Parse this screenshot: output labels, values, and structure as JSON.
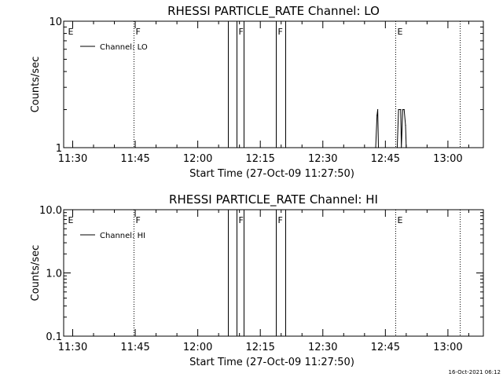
{
  "footer": {
    "timestamp": "16-Oct-2021 06:12"
  },
  "chart_data": [
    {
      "type": "line",
      "title": "RHESSI PARTICLE_RATE Channel: LO",
      "xlabel": "Start Time (27-Oct-09 11:27:50)",
      "ylabel": "Counts/sec",
      "yscale": "log",
      "xlim": [
        "11:27:50",
        "13:08:30"
      ],
      "ylim": [
        1,
        10
      ],
      "x_ticks": [
        "11:30",
        "11:45",
        "12:00",
        "12:15",
        "12:30",
        "12:45",
        "13:00"
      ],
      "y_ticks": [
        {
          "value": 1,
          "label": "1"
        },
        {
          "value": 10,
          "label": "10"
        }
      ],
      "legend": {
        "position": "top-left",
        "entries": [
          "Channel: LO"
        ]
      },
      "markers": [
        {
          "time": "11:28:20",
          "label": "E",
          "style": "none"
        },
        {
          "time": "11:44:40",
          "label": "F",
          "style": "dotted"
        },
        {
          "time": "12:07:15",
          "label": "",
          "style": "solid"
        },
        {
          "time": "12:09:20",
          "label": "F",
          "style": "solid"
        },
        {
          "time": "12:10:55",
          "label": "",
          "style": "solid"
        },
        {
          "time": "12:18:40",
          "label": "F",
          "style": "solid"
        },
        {
          "time": "12:21:05",
          "label": "",
          "style": "solid"
        },
        {
          "time": "12:47:20",
          "label": "E",
          "style": "dotted"
        },
        {
          "time": "13:02:50",
          "label": "",
          "style": "dotted"
        }
      ],
      "series": [
        {
          "name": "Channel: LO",
          "x": [
            "12:42:40",
            "12:43:00",
            "12:43:10",
            "12:43:20",
            "12:47:50",
            "12:48:10",
            "12:48:40",
            "12:48:50",
            "12:49:10",
            "12:49:30",
            "12:49:50",
            "12:50:00"
          ],
          "values": [
            1,
            1.8,
            2.0,
            1,
            1,
            2.0,
            2.0,
            1,
            2.0,
            2.0,
            1.5,
            1
          ]
        }
      ]
    },
    {
      "type": "line",
      "title": "RHESSI PARTICLE_RATE Channel: HI",
      "xlabel": "Start Time (27-Oct-09 11:27:50)",
      "ylabel": "Counts/sec",
      "yscale": "log",
      "xlim": [
        "11:27:50",
        "13:08:30"
      ],
      "ylim": [
        0.1,
        10
      ],
      "x_ticks": [
        "11:30",
        "11:45",
        "12:00",
        "12:15",
        "12:30",
        "12:45",
        "13:00"
      ],
      "y_ticks": [
        {
          "value": 0.1,
          "label": "0.1"
        },
        {
          "value": 1,
          "label": "1.0"
        },
        {
          "value": 10,
          "label": "10.0"
        }
      ],
      "legend": {
        "position": "top-left",
        "entries": [
          "Channel: HI"
        ]
      },
      "markers": [
        {
          "time": "11:28:20",
          "label": "E",
          "style": "none"
        },
        {
          "time": "11:44:40",
          "label": "F",
          "style": "dotted"
        },
        {
          "time": "12:07:15",
          "label": "",
          "style": "solid"
        },
        {
          "time": "12:09:20",
          "label": "F",
          "style": "solid"
        },
        {
          "time": "12:10:55",
          "label": "",
          "style": "solid"
        },
        {
          "time": "12:18:40",
          "label": "F",
          "style": "solid"
        },
        {
          "time": "12:21:05",
          "label": "",
          "style": "solid"
        },
        {
          "time": "12:47:20",
          "label": "E",
          "style": "dotted"
        },
        {
          "time": "13:02:50",
          "label": "",
          "style": "dotted"
        }
      ],
      "series": [
        {
          "name": "Channel: HI",
          "x": [],
          "values": []
        }
      ]
    }
  ]
}
